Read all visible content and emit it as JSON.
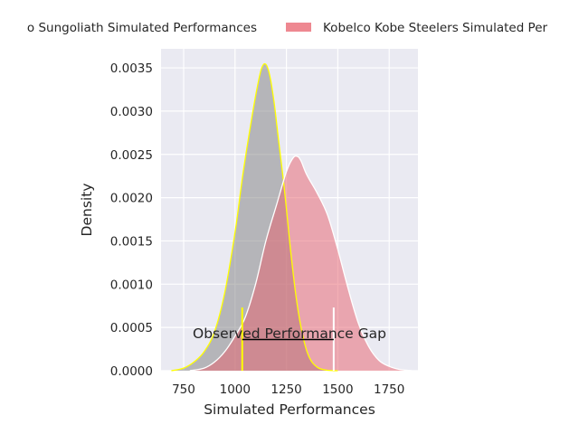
{
  "chart_data": {
    "type": "area",
    "title": "",
    "xlabel": "Simulated Performances",
    "ylabel": "Density",
    "xlim": [
      640,
      1890
    ],
    "ylim": [
      0,
      0.00372
    ],
    "grid": true,
    "legend_position": "top",
    "x_ticks": [
      {
        "value": 750,
        "label": "750"
      },
      {
        "value": 1000,
        "label": "1000"
      },
      {
        "value": 1250,
        "label": "1250"
      },
      {
        "value": 1500,
        "label": "1500"
      },
      {
        "value": 1750,
        "label": "1750"
      }
    ],
    "y_ticks": [
      {
        "value": 0.0,
        "label": "0.0000"
      },
      {
        "value": 0.0005,
        "label": "0.0005"
      },
      {
        "value": 0.001,
        "label": "0.0010"
      },
      {
        "value": 0.0015,
        "label": "0.0015"
      },
      {
        "value": 0.002,
        "label": "0.0020"
      },
      {
        "value": 0.0025,
        "label": "0.0025"
      },
      {
        "value": 0.003,
        "label": "0.0030"
      },
      {
        "value": 0.0035,
        "label": "0.0035"
      }
    ],
    "series": [
      {
        "name": "Sungoliath Simulated Performances",
        "legend_label": "o Sungoliath Simulated Performances",
        "fill_color": "#808080",
        "fill_opacity": 0.5,
        "edge_color": "#ffff00",
        "x": [
          690,
          750,
          800,
          850,
          900,
          950,
          1000,
          1040,
          1080,
          1110,
          1130,
          1150,
          1170,
          1190,
          1210,
          1240,
          1270,
          1300,
          1330,
          1360,
          1400,
          1450,
          1500
        ],
        "y": [
          0.0,
          3e-05,
          0.0001,
          0.00022,
          0.00045,
          0.0009,
          0.0016,
          0.0023,
          0.0029,
          0.0033,
          0.0035,
          0.00354,
          0.0034,
          0.0031,
          0.0027,
          0.0021,
          0.0014,
          0.0008,
          0.0004,
          0.00016,
          4e-05,
          5e-06,
          0.0
        ]
      },
      {
        "name": "Kobelco Kobe Steelers Simulated Performances",
        "legend_label": "Kobelco Kobe Steelers Simulated Per",
        "fill_color": "#e8606c",
        "fill_opacity": 0.5,
        "edge_color": "#ffffff",
        "x": [
          780,
          850,
          900,
          950,
          1000,
          1050,
          1100,
          1150,
          1200,
          1250,
          1280,
          1300,
          1320,
          1350,
          1400,
          1450,
          1500,
          1550,
          1600,
          1650,
          1700,
          1750,
          1800,
          1860
        ],
        "y": [
          0.0,
          3e-05,
          0.0001,
          0.00022,
          0.0004,
          0.00062,
          0.001,
          0.0015,
          0.0019,
          0.0023,
          0.00245,
          0.00248,
          0.00243,
          0.00226,
          0.00205,
          0.0018,
          0.0014,
          0.00095,
          0.00055,
          0.00028,
          0.00012,
          5e-05,
          1.5e-05,
          0.0
        ]
      }
    ],
    "annotations": [
      {
        "text": "Observed Performance Gap",
        "text_x": 1265,
        "text_y": 0.00044,
        "gap_line": {
          "x1": 1035,
          "x2": 1480,
          "y": 0.00036
        },
        "markers": [
          {
            "x": 1035,
            "y_top": 0.00073,
            "color": "#ffff00"
          },
          {
            "x": 1480,
            "y_top": 0.00073,
            "color": "#ffffff"
          }
        ]
      }
    ]
  }
}
